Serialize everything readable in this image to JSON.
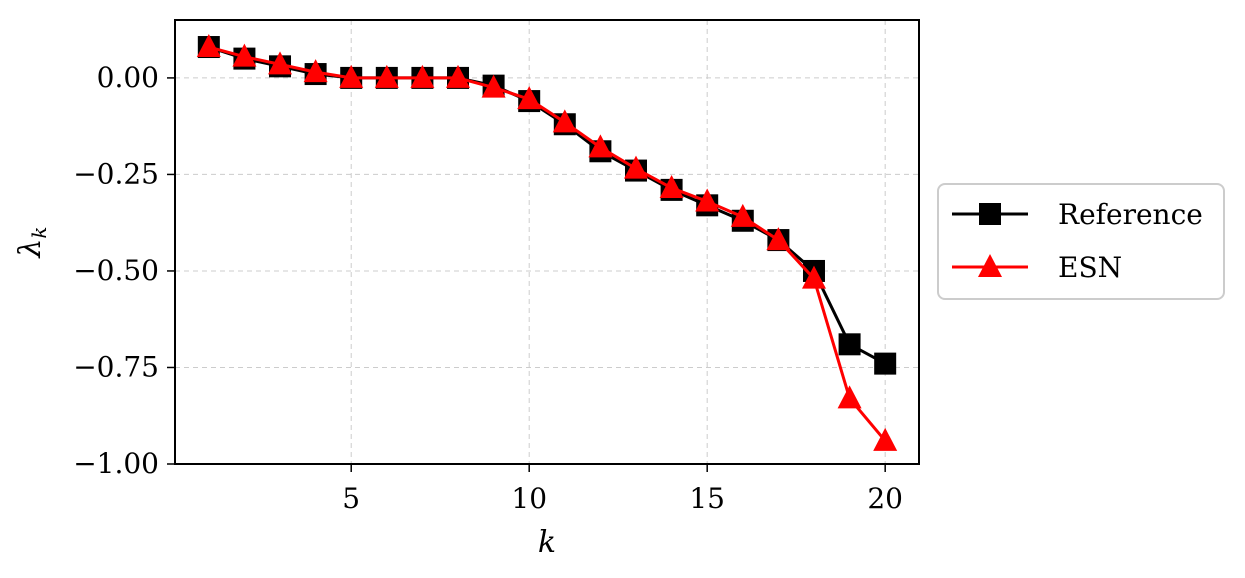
{
  "chart_data": {
    "type": "line",
    "xlabel": "k",
    "ylabel_main": "λ",
    "ylabel_sub": "k",
    "xlim": [
      0.05,
      20.95
    ],
    "ylim": [
      -1.0,
      0.15
    ],
    "x_ticks": [
      5,
      10,
      15,
      20
    ],
    "x_tick_labels": [
      "5",
      "10",
      "15",
      "20"
    ],
    "y_ticks": [
      0.0,
      -0.25,
      -0.5,
      -0.75,
      -1.0
    ],
    "y_tick_labels": [
      "0.00",
      "−0.25",
      "−0.50",
      "−0.75",
      "−1.00"
    ],
    "grid": true,
    "legend_position": "right-outside",
    "x": [
      1,
      2,
      3,
      4,
      5,
      6,
      7,
      8,
      9,
      10,
      11,
      12,
      13,
      14,
      15,
      16,
      17,
      18,
      19,
      20
    ],
    "series": [
      {
        "name": "Reference",
        "color": "#000000",
        "marker": "square",
        "values": [
          0.08,
          0.05,
          0.03,
          0.01,
          0.0,
          0.0,
          0.0,
          0.0,
          -0.02,
          -0.06,
          -0.12,
          -0.19,
          -0.24,
          -0.29,
          -0.33,
          -0.37,
          -0.42,
          -0.5,
          -0.69,
          -0.74
        ]
      },
      {
        "name": "ESN",
        "color": "#ff0000",
        "marker": "triangle",
        "values": [
          0.08,
          0.055,
          0.035,
          0.015,
          0.0,
          0.0,
          0.0,
          0.0,
          -0.025,
          -0.055,
          -0.115,
          -0.18,
          -0.235,
          -0.285,
          -0.32,
          -0.36,
          -0.42,
          -0.52,
          -0.83,
          -0.94
        ]
      }
    ]
  }
}
